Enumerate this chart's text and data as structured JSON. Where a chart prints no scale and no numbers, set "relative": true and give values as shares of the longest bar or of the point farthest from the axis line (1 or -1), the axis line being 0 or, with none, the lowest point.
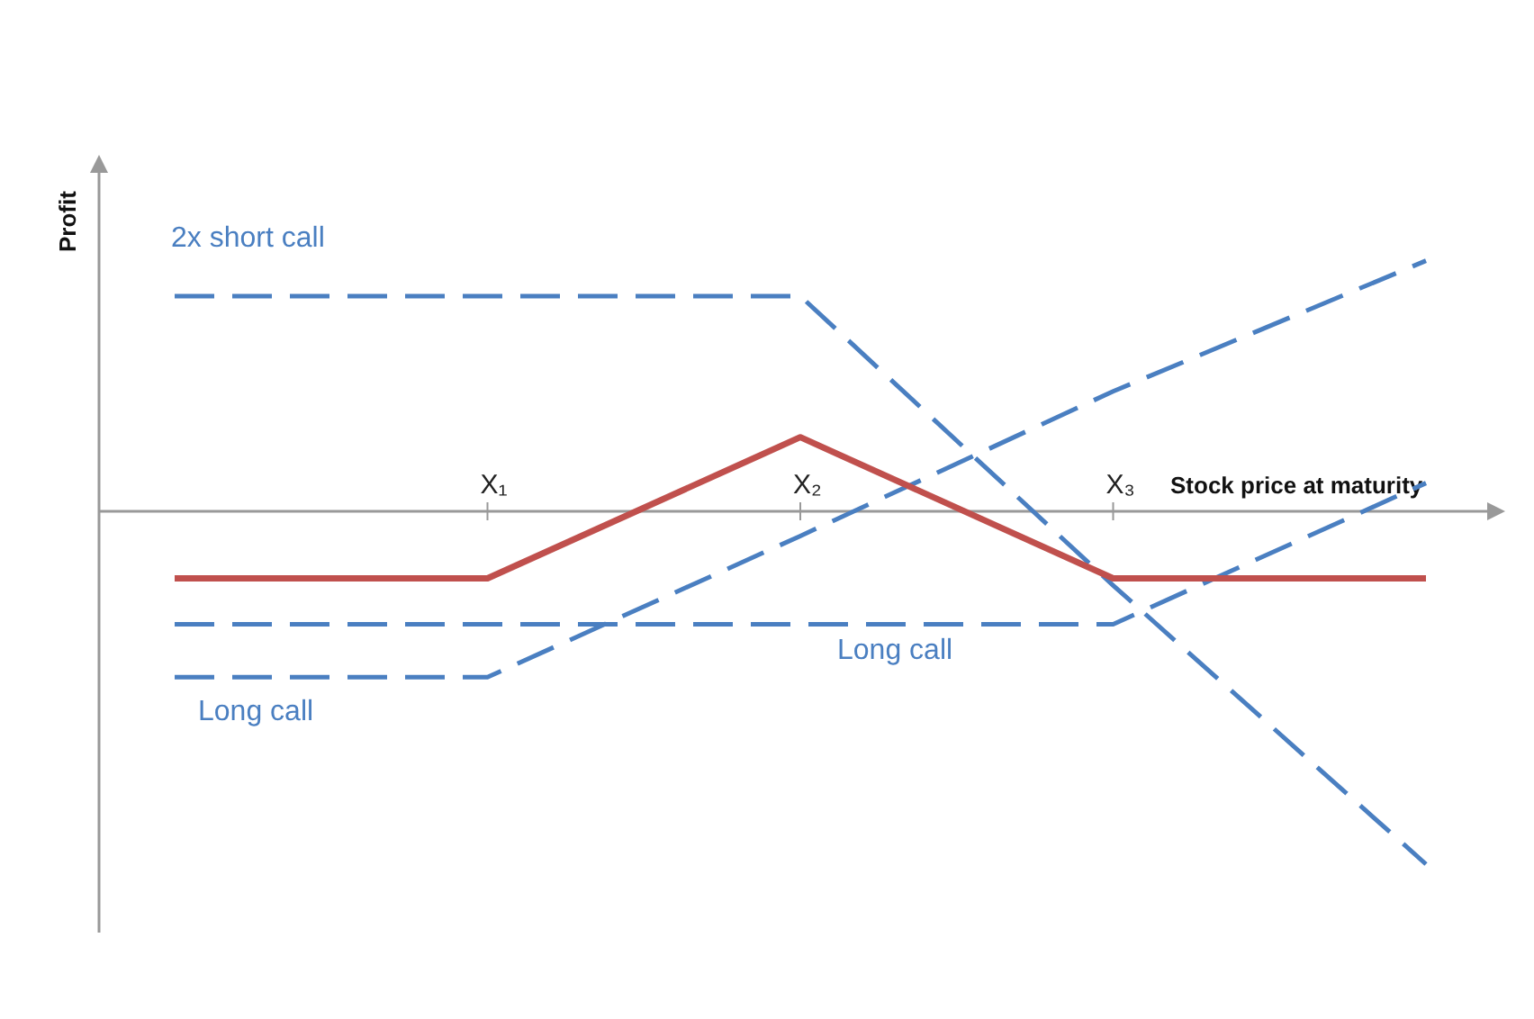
{
  "chart_data": {
    "type": "line",
    "relative": true,
    "xlabel": "Stock price at maturity",
    "ylabel": "Profit",
    "categories": [
      null,
      "X₁",
      "X₂",
      "X₃",
      null
    ],
    "series": [
      {
        "name": "2x short call",
        "color": "#4a7fc1",
        "line_style": "dashed",
        "values": [
          0.61,
          0.61,
          0.61,
          -0.21,
          -1
        ]
      },
      {
        "name": "Long call",
        "color": "#4a7fc1",
        "line_style": "dashed",
        "values": [
          -0.47,
          -0.47,
          -0.07,
          0.34,
          0.71
        ]
      },
      {
        "name": "Long call",
        "color": "#4a7fc1",
        "line_style": "dashed",
        "values": [
          -0.32,
          -0.32,
          -0.32,
          -0.32,
          0.08
        ]
      },
      {
        "color": "#c0504d",
        "line_style": "solid",
        "values": [
          -0.19,
          -0.19,
          0.21,
          -0.19,
          -0.19
        ]
      }
    ]
  }
}
